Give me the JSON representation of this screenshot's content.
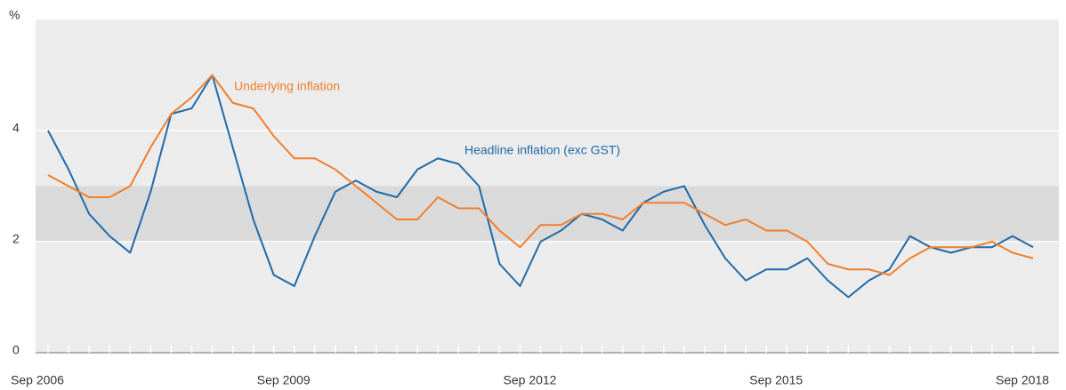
{
  "chart_data": {
    "type": "line",
    "y_label": "%",
    "categories": [
      "Sep 2006",
      null,
      null,
      null,
      null,
      null,
      null,
      null,
      null,
      null,
      null,
      null,
      "Sep 2009",
      null,
      null,
      null,
      null,
      null,
      null,
      null,
      null,
      null,
      null,
      null,
      "Sep 2012",
      null,
      null,
      null,
      null,
      null,
      null,
      null,
      null,
      null,
      null,
      null,
      "Sep 2015",
      null,
      null,
      null,
      null,
      null,
      null,
      null,
      null,
      null,
      null,
      null,
      "Sep 2018"
    ],
    "series": [
      {
        "name": "Headline inflation (exc GST)",
        "color": "#1f6aa8",
        "values": [
          4.0,
          3.3,
          2.5,
          2.1,
          1.8,
          2.9,
          4.3,
          4.4,
          5.0,
          3.7,
          2.4,
          1.4,
          1.2,
          2.1,
          2.9,
          3.1,
          2.9,
          2.8,
          3.3,
          3.5,
          3.4,
          3.0,
          1.6,
          1.2,
          2.0,
          2.2,
          2.5,
          2.4,
          2.2,
          2.7,
          2.9,
          3.0,
          2.3,
          1.7,
          1.3,
          1.5,
          1.5,
          1.7,
          1.3,
          1.0,
          1.3,
          1.5,
          2.1,
          1.9,
          1.8,
          1.9,
          1.9,
          2.1,
          1.9
        ]
      },
      {
        "name": "Underlying inflation",
        "color": "#f07f2a",
        "values": [
          3.2,
          3.0,
          2.8,
          2.8,
          3.0,
          3.7,
          4.3,
          4.6,
          5.0,
          4.5,
          4.4,
          3.9,
          3.5,
          3.5,
          3.3,
          3.0,
          2.7,
          2.4,
          2.4,
          2.8,
          2.6,
          2.6,
          2.2,
          1.9,
          2.3,
          2.3,
          2.5,
          2.5,
          2.4,
          2.7,
          2.7,
          2.7,
          2.5,
          2.3,
          2.4,
          2.2,
          2.2,
          2.0,
          1.6,
          1.5,
          1.5,
          1.4,
          1.7,
          1.9,
          1.9,
          1.9,
          2.0,
          1.8,
          1.7
        ]
      }
    ],
    "target_band": [
      2,
      3
    ],
    "ylim": [
      0,
      6
    ],
    "yticks": [
      0,
      2,
      4
    ],
    "grid": true
  }
}
